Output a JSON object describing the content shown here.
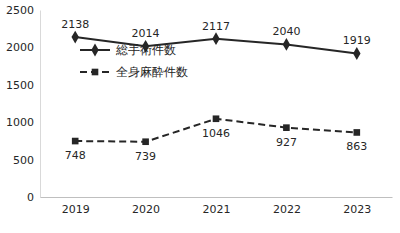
{
  "chart_data": {
    "type": "line",
    "categories": [
      "2019",
      "2020",
      "2021",
      "2022",
      "2023"
    ],
    "series": [
      {
        "name": "総手術件数",
        "color": "#262626",
        "marker": "diamond",
        "line_style": "solid",
        "values": [
          2138,
          2014,
          2117,
          2040,
          1919
        ]
      },
      {
        "name": "全身麻酔件数",
        "color": "#262626",
        "marker": "square",
        "line_style": "dashed",
        "values": [
          748,
          739,
          1046,
          927,
          863
        ]
      }
    ],
    "ylim": [
      0,
      2500
    ],
    "yticks": [
      0,
      500,
      1000,
      1500,
      2000,
      2500
    ],
    "grid": false,
    "legend": "upper left",
    "data_labels": true
  }
}
